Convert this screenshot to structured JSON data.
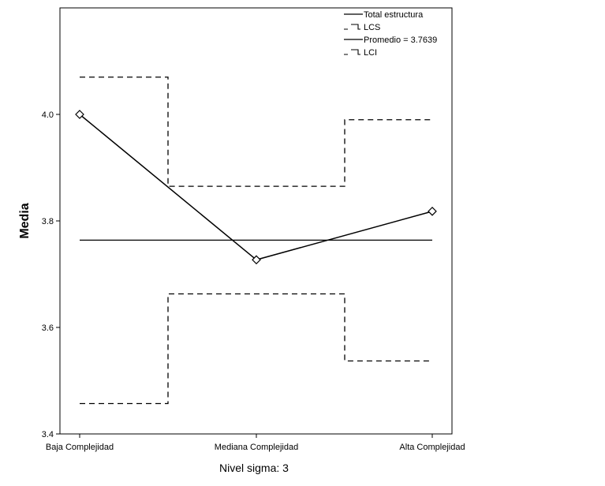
{
  "chart_data": {
    "type": "line",
    "title": "",
    "xlabel": "",
    "ylabel": "Media",
    "footnote": "Nivel sigma: 3",
    "ylim": [
      3.4,
      4.2
    ],
    "yticks": [
      "3.4",
      "3.6",
      "3.8",
      "4.0"
    ],
    "ytick_values": [
      3.4,
      3.6,
      3.8,
      4.0
    ],
    "categories": [
      "Baja Complejidad",
      "Mediana Complejidad",
      "Alta Complejidad"
    ],
    "grid": false,
    "legend_position": "top-right",
    "series": [
      {
        "name": "Total estructura",
        "style": "solid-markers",
        "values": [
          4.0,
          3.727,
          3.818
        ]
      },
      {
        "name": "LCS",
        "style": "dashed-step",
        "values": [
          4.07,
          3.865,
          3.99
        ]
      },
      {
        "name": "Promedio = 3.7639",
        "style": "solid-flat",
        "values": [
          3.7639,
          3.7639,
          3.7639
        ]
      },
      {
        "name": "LCI",
        "style": "dashed-step",
        "values": [
          3.457,
          3.663,
          3.537
        ]
      }
    ],
    "colors": {
      "line": "#000000",
      "background": "#ffffff"
    }
  }
}
